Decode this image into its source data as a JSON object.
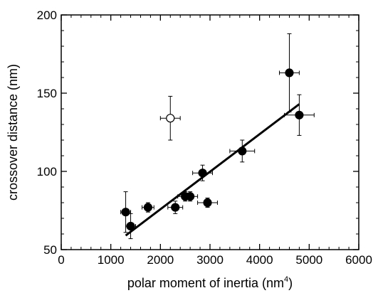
{
  "chart_data": {
    "type": "scatter",
    "xlabel": "polar moment of inertia (nm",
    "xlabel_sup": "4",
    "xlabel_close": ")",
    "ylabel": "crossover distance (nm)",
    "xlim": [
      0,
      6000
    ],
    "ylim": [
      50,
      200
    ],
    "x_ticks": [
      0,
      1000,
      2000,
      3000,
      4000,
      5000,
      6000
    ],
    "y_ticks": [
      50,
      100,
      150,
      200
    ],
    "x_tick_labels": [
      "0",
      "1000",
      "2000",
      "3000",
      "4000",
      "5000",
      "6000"
    ],
    "y_tick_labels": [
      "50",
      "100",
      "150",
      "200"
    ],
    "x_minor_step": 200,
    "y_minor_step": 10,
    "grid": false,
    "series": [
      {
        "marker": "filled-circle",
        "points": [
          {
            "x": 1300,
            "y": 74,
            "xerr": 100,
            "yerr_up": 13,
            "yerr_down": 13
          },
          {
            "x": 1400,
            "y": 65,
            "xerr": 100,
            "yerr_up": 8,
            "yerr_down": 8
          },
          {
            "x": 1750,
            "y": 77,
            "xerr": 120,
            "yerr_up": 3,
            "yerr_down": 3
          },
          {
            "x": 2300,
            "y": 77,
            "xerr": 150,
            "yerr_up": 4,
            "yerr_down": 4
          },
          {
            "x": 2500,
            "y": 84,
            "xerr": 150,
            "yerr_up": 3,
            "yerr_down": 3
          },
          {
            "x": 2600,
            "y": 84,
            "xerr": 150,
            "yerr_up": 3,
            "yerr_down": 3
          },
          {
            "x": 2850,
            "y": 99,
            "xerr": 200,
            "yerr_up": 5,
            "yerr_down": 5
          },
          {
            "x": 2950,
            "y": 80,
            "xerr": 200,
            "yerr_up": 3,
            "yerr_down": 3
          },
          {
            "x": 3650,
            "y": 113,
            "xerr": 250,
            "yerr_up": 7,
            "yerr_down": 7
          },
          {
            "x": 4600,
            "y": 163,
            "xerr": 200,
            "yerr_up": 25,
            "yerr_down": 25
          },
          {
            "x": 4800,
            "y": 136,
            "xerr": 300,
            "yerr_up": 13,
            "yerr_down": 13
          }
        ]
      },
      {
        "marker": "open-circle",
        "points": [
          {
            "x": 2200,
            "y": 134,
            "xerr": 200,
            "yerr_up": 14,
            "yerr_down": 14
          }
        ]
      }
    ],
    "fit_line": {
      "x": [
        1300,
        4800
      ],
      "y": [
        59,
        143
      ]
    }
  }
}
